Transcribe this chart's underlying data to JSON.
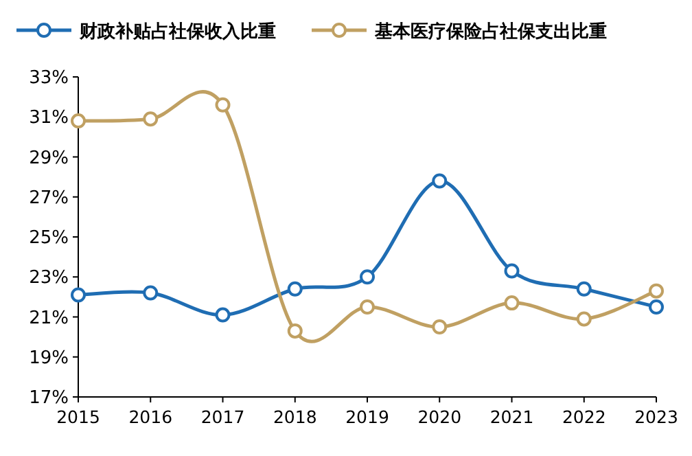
{
  "chart_data": {
    "type": "line",
    "categories": [
      "2015",
      "2016",
      "2017",
      "2018",
      "2019",
      "2020",
      "2021",
      "2022",
      "2023"
    ],
    "series": [
      {
        "name": "财政补贴占社保收入比重",
        "color": "#1f6db3",
        "values": [
          22.1,
          22.2,
          21.1,
          22.4,
          23.0,
          27.8,
          23.3,
          22.4,
          21.5
        ]
      },
      {
        "name": "基本医疗保险占社保支出比重",
        "color": "#c0a062",
        "values": [
          30.8,
          30.9,
          31.6,
          20.3,
          21.5,
          20.5,
          21.7,
          20.9,
          22.3
        ]
      }
    ],
    "ylim": [
      17,
      33
    ],
    "yticks": [
      {
        "value": 17,
        "label": "17%"
      },
      {
        "value": 19,
        "label": "19%"
      },
      {
        "value": 21,
        "label": "21%"
      },
      {
        "value": 23,
        "label": "23%"
      },
      {
        "value": 25,
        "label": "25%"
      },
      {
        "value": 27,
        "label": "27%"
      },
      {
        "value": 29,
        "label": "29%"
      },
      {
        "value": 31,
        "label": "31%"
      },
      {
        "value": 33,
        "label": "33%"
      }
    ],
    "marker": "circle",
    "legend": "top",
    "grid": false
  }
}
